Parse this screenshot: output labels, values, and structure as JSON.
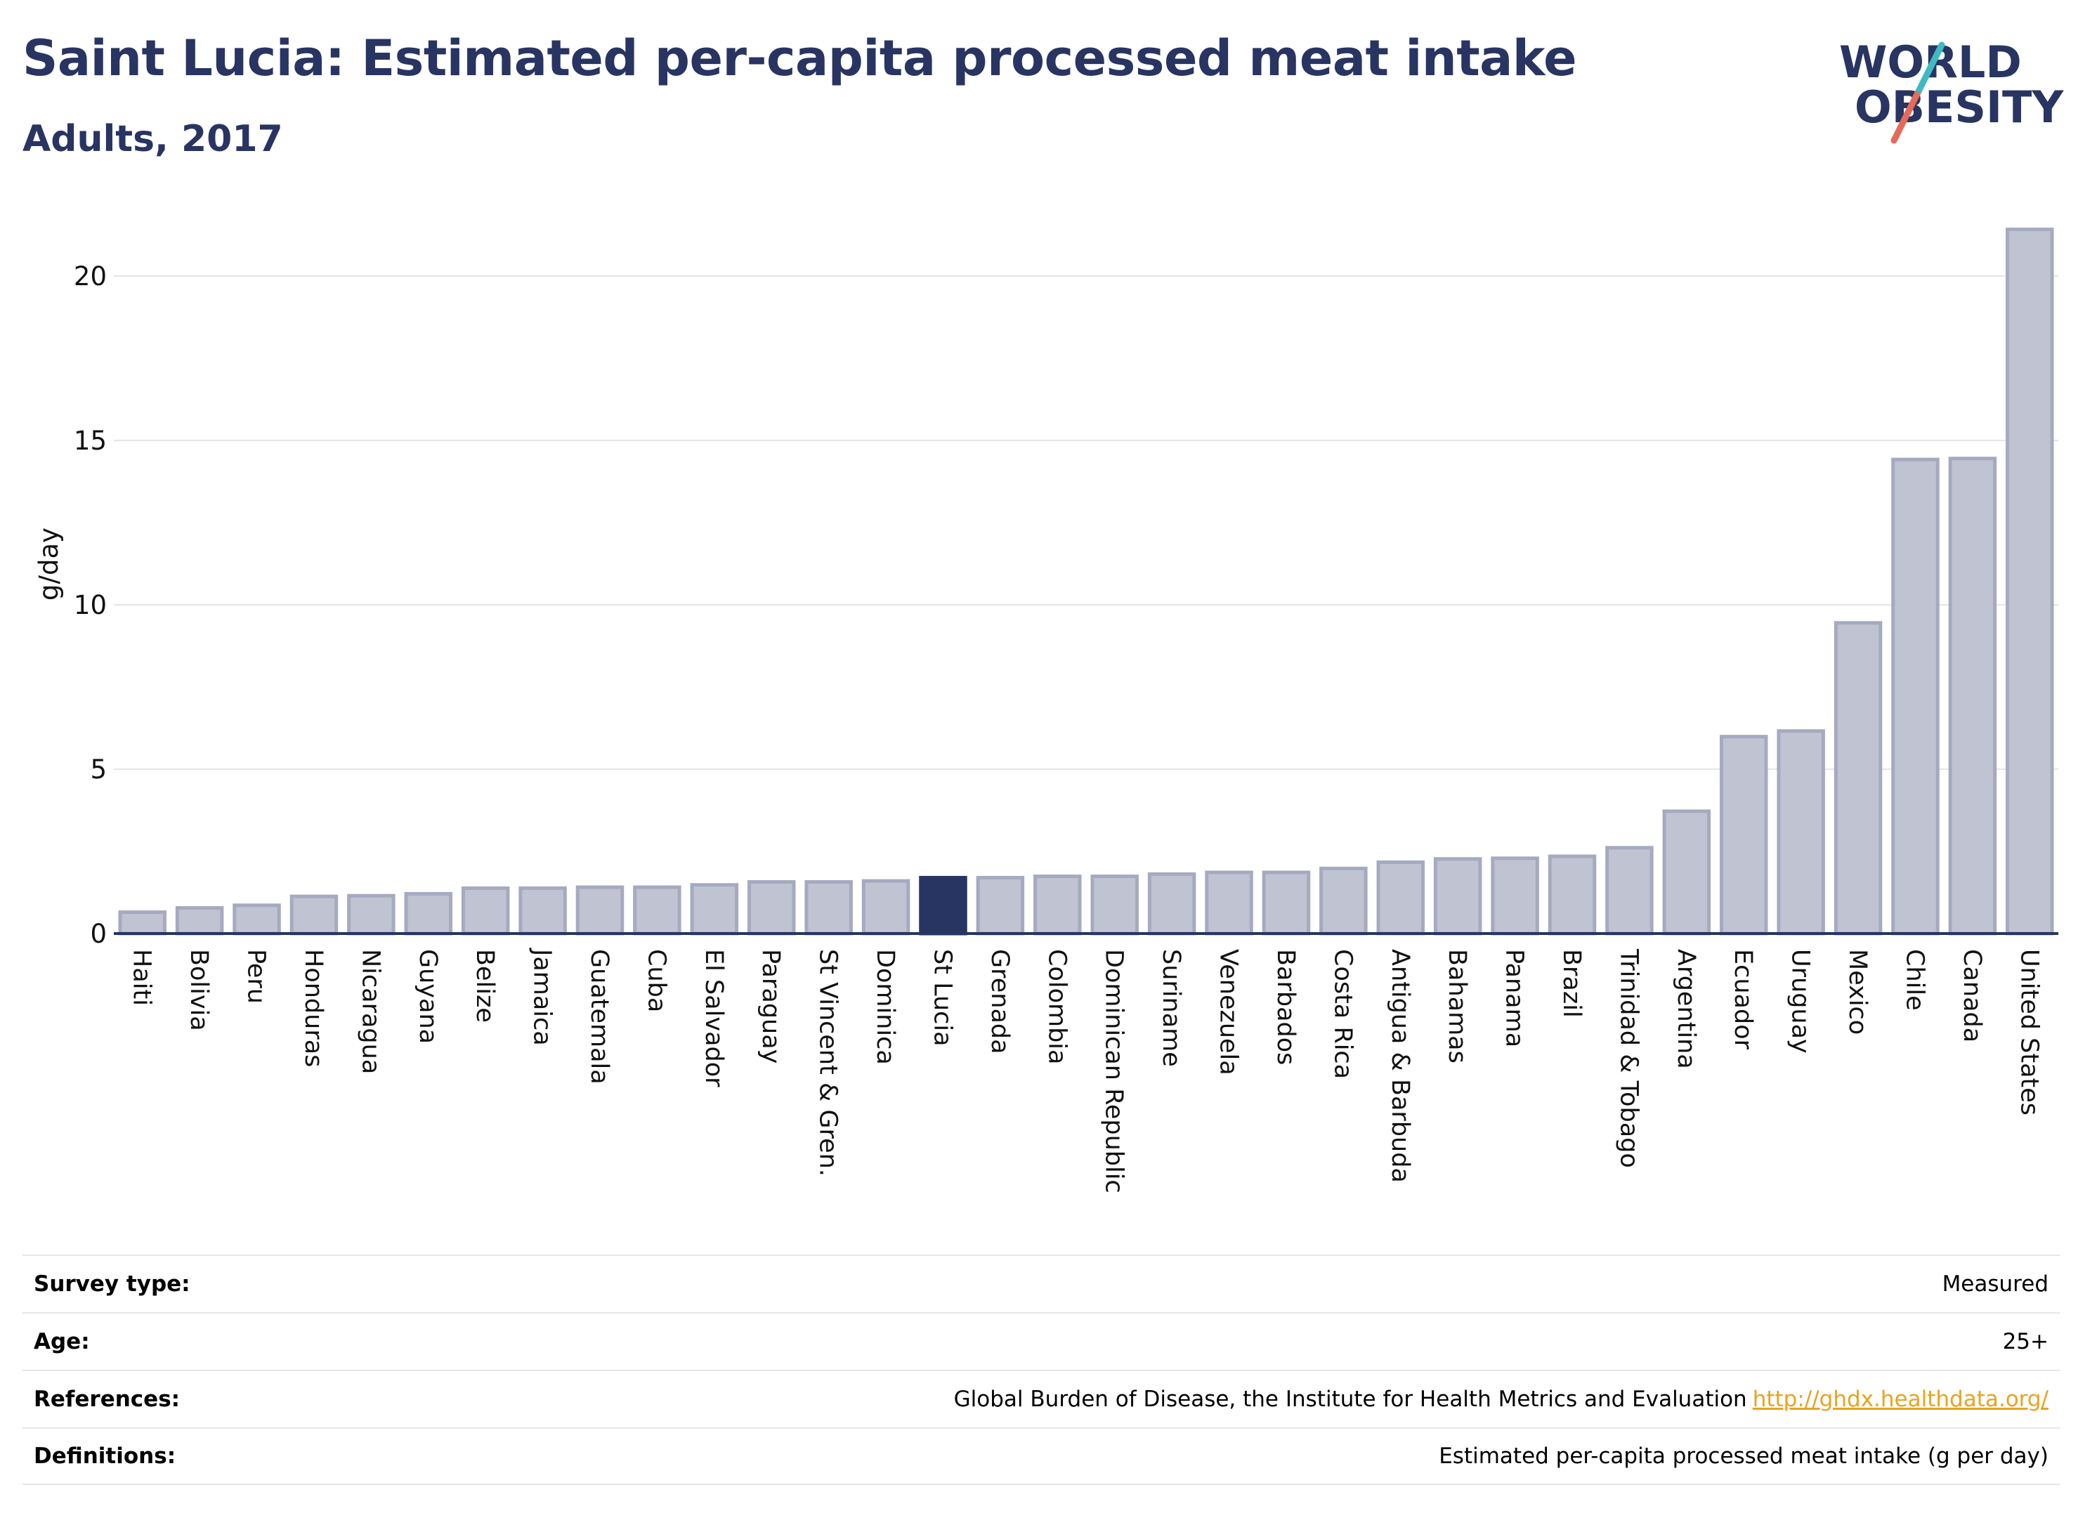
{
  "header": {
    "title": "Saint Lucia: Estimated per-capita processed meat intake",
    "subtitle": "Adults, 2017"
  },
  "logo": {
    "line1": "WORLD",
    "line2": "OBESITY",
    "colors": {
      "text": "#283462",
      "slash_teal": "#3fb9c2",
      "slash_coral": "#e56a5a"
    }
  },
  "chart_data": {
    "type": "bar",
    "title": "Saint Lucia: Estimated per-capita processed meat intake",
    "subtitle": "Adults, 2017",
    "ylabel": "g/day",
    "xlabel": "",
    "ylim": [
      0,
      22
    ],
    "yticks": [
      0,
      5,
      10,
      15,
      20
    ],
    "grid": true,
    "highlight": "St Lucia",
    "colors": {
      "bar": "#c0c3d1",
      "bar_edge": "#a6aac0",
      "highlight": "#283462"
    },
    "categories": [
      "Haiti",
      "Bolivia",
      "Peru",
      "Honduras",
      "Nicaragua",
      "Guyana",
      "Belize",
      "Jamaica",
      "Guatemala",
      "Cuba",
      "El Salvador",
      "Paraguay",
      "St Vincent & Gren.",
      "Dominica",
      "St Lucia",
      "Grenada",
      "Colombia",
      "Dominican Republic",
      "Suriname",
      "Venezuela",
      "Barbados",
      "Costa Rica",
      "Antigua & Barbuda",
      "Bahamas",
      "Panama",
      "Brazil",
      "Trinidad & Tobago",
      "Argentina",
      "Ecuador",
      "Uruguay",
      "Mexico",
      "Chile",
      "Canada",
      "United States"
    ],
    "values": [
      0.65,
      0.78,
      0.86,
      1.13,
      1.15,
      1.21,
      1.38,
      1.38,
      1.41,
      1.41,
      1.48,
      1.57,
      1.57,
      1.6,
      1.7,
      1.7,
      1.74,
      1.74,
      1.81,
      1.86,
      1.86,
      1.98,
      2.17,
      2.27,
      2.29,
      2.35,
      2.61,
      3.72,
      5.99,
      6.16,
      9.45,
      14.42,
      14.45,
      21.42
    ]
  },
  "info": [
    {
      "key": "Survey type:",
      "value": "Measured"
    },
    {
      "key": "Age:",
      "value": "25+"
    },
    {
      "key": "References:",
      "value": "Global Burden of Disease, the Institute for Health Metrics and Evaluation",
      "link": "http://ghdx.healthdata.org/"
    },
    {
      "key": "Definitions:",
      "value": "Estimated per-capita processed meat intake (g per day)"
    }
  ]
}
